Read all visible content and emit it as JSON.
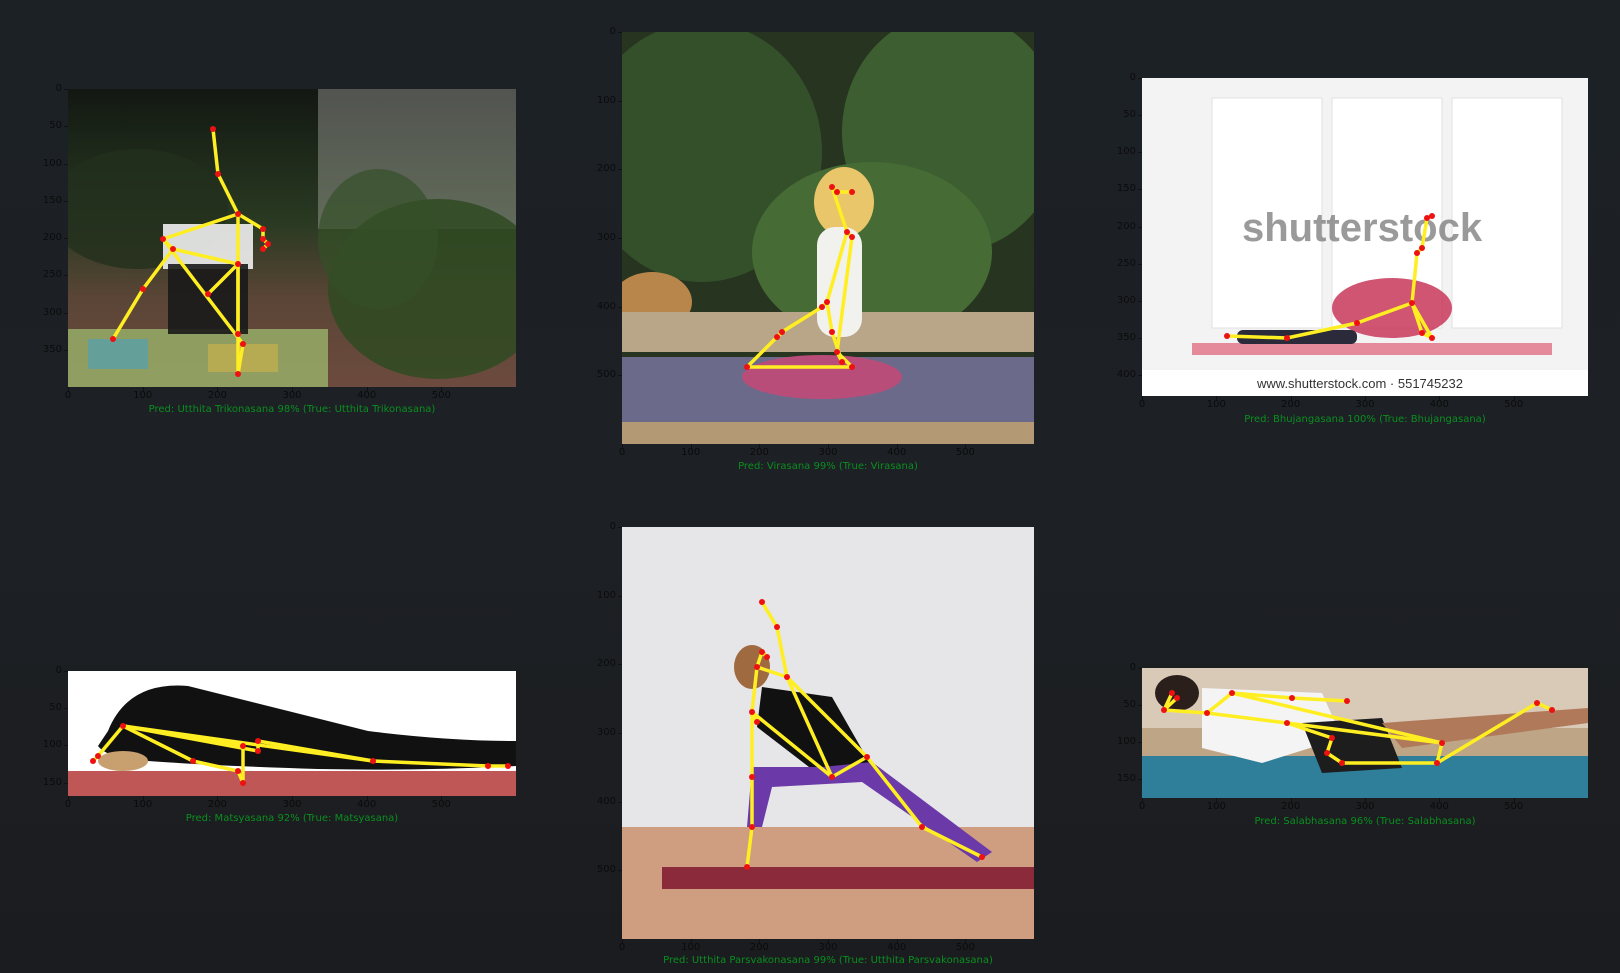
{
  "panels": [
    {
      "id": "p1",
      "caption": "Pred: Utthita Trikonasana 98% (True: Utthita Trikonasana)",
      "yticks": [
        "0",
        "50",
        "100",
        "150",
        "200",
        "250",
        "300",
        "350"
      ],
      "xticks": [
        "0",
        "100",
        "200",
        "300",
        "400",
        "500"
      ],
      "colors": {
        "top": "#1f2a20",
        "mid": "#2d3d24",
        "bottom": "#6a5040"
      }
    },
    {
      "id": "p2",
      "caption": "Pred: Virasana 99% (True: Virasana)",
      "yticks": [
        "0",
        "100",
        "200",
        "300",
        "400",
        "500"
      ],
      "xticks": [
        "0",
        "100",
        "200",
        "300",
        "400",
        "500"
      ],
      "colors": {
        "top": "#2c3a24",
        "mid": "#3e5a2f",
        "bottom": "#6c6a8a"
      }
    },
    {
      "id": "p3",
      "caption": "Pred: Bhujangasana 100% (True: Bhujangasana)",
      "yticks": [
        "0",
        "50",
        "100",
        "150",
        "200",
        "250",
        "300",
        "350",
        "400"
      ],
      "xticks": [
        "0",
        "100",
        "200",
        "300",
        "400",
        "500"
      ],
      "colors": {
        "top": "#f2f2f2",
        "mid": "#ececec",
        "bottom": "#f6f6f6"
      },
      "watermark": "shutterstock",
      "footer": "www.shutterstock.com · 551745232"
    },
    {
      "id": "p4",
      "caption": "Pred: Matsyasana 92% (True: Matsyasana)",
      "yticks": [
        "0",
        "50",
        "100",
        "150"
      ],
      "xticks": [
        "0",
        "100",
        "200",
        "300",
        "400",
        "500"
      ],
      "colors": {
        "top": "#ffffff",
        "mid": "#f4f4f4",
        "bottom": "#b55050"
      }
    },
    {
      "id": "p5",
      "caption": "Pred: Utthita Parsvakonasana 99% (True: Utthita Parsvakonasana)",
      "yticks": [
        "0",
        "100",
        "200",
        "300",
        "400",
        "500"
      ],
      "xticks": [
        "0",
        "100",
        "200",
        "300",
        "400",
        "500"
      ],
      "colors": {
        "top": "#e8e8ea",
        "mid": "#dcdcdc",
        "bottom": "#c89a7a"
      }
    },
    {
      "id": "p6",
      "caption": "Pred: Salabhasana 96% (True: Salabhasana)",
      "yticks": [
        "0",
        "50",
        "100",
        "150"
      ],
      "xticks": [
        "0",
        "100",
        "200",
        "300",
        "400",
        "500"
      ],
      "colors": {
        "top": "#d8c8b6",
        "mid": "#cbb8a2",
        "bottom": "#2f7e9a"
      }
    }
  ],
  "skeleton_color": "#ffee22",
  "keypoint_color": "#ee1111"
}
